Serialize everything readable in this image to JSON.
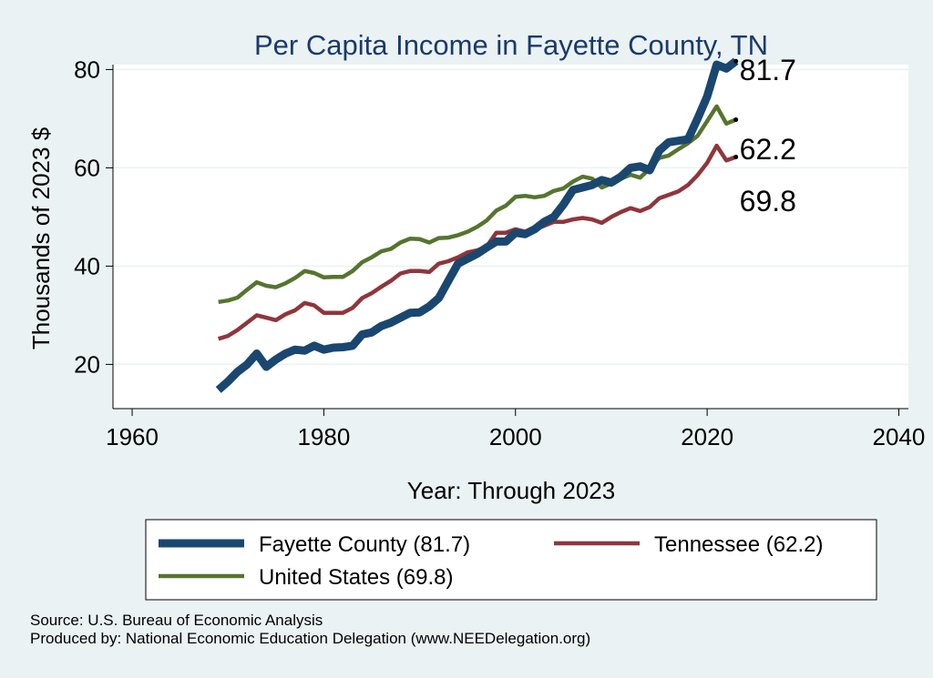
{
  "chart_data": {
    "type": "line",
    "title": "Per Capita Income in Fayette County, TN",
    "xlabel": "Year: Through 2023",
    "ylabel": "Thousands of 2023 $",
    "xlim": [
      1958,
      2041
    ],
    "ylim": [
      11,
      81
    ],
    "xticks": [
      "1960",
      "1980",
      "2000",
      "2020",
      "2040"
    ],
    "yticks": [
      "20",
      "40",
      "60",
      "80"
    ],
    "grid": true,
    "legend_position": "bottom",
    "x": [
      1969,
      1970,
      1971,
      1972,
      1973,
      1974,
      1975,
      1976,
      1977,
      1978,
      1979,
      1980,
      1981,
      1982,
      1983,
      1984,
      1985,
      1986,
      1987,
      1988,
      1989,
      1990,
      1991,
      1992,
      1993,
      1994,
      1995,
      1996,
      1997,
      1998,
      1999,
      2000,
      2001,
      2002,
      2003,
      2004,
      2005,
      2006,
      2007,
      2008,
      2009,
      2010,
      2011,
      2012,
      2013,
      2014,
      2015,
      2016,
      2017,
      2018,
      2019,
      2020,
      2021,
      2022,
      2023
    ],
    "series": [
      {
        "name": "Fayette County (81.7)",
        "color": "#1a476f",
        "end_label": "81.7",
        "values": [
          14.8,
          16.5,
          18.5,
          20.0,
          22.2,
          19.5,
          21.0,
          22.2,
          23.0,
          22.8,
          23.8,
          23.0,
          23.4,
          23.5,
          23.8,
          26.1,
          26.5,
          27.8,
          28.5,
          29.5,
          30.5,
          30.6,
          31.8,
          33.5,
          37.0,
          40.5,
          41.5,
          42.5,
          43.8,
          45.0,
          45.0,
          46.8,
          46.5,
          47.5,
          49.0,
          50.0,
          52.5,
          55.5,
          56.0,
          56.5,
          57.5,
          57.0,
          58.2,
          60.0,
          60.3,
          59.5,
          63.5,
          65.2,
          65.5,
          65.8,
          70.0,
          74.5,
          81.0,
          80.2,
          81.7
        ]
      },
      {
        "name": "Tennessee (62.2)",
        "color": "#90353b",
        "end_label": "62.2",
        "values": [
          25.2,
          25.8,
          27.0,
          28.5,
          30.0,
          29.5,
          29.0,
          30.2,
          31.0,
          32.5,
          32.0,
          30.5,
          30.5,
          30.5,
          31.5,
          33.5,
          34.5,
          35.8,
          37.0,
          38.5,
          39.0,
          39.0,
          38.8,
          40.5,
          41.0,
          41.8,
          42.8,
          43.2,
          44.0,
          46.8,
          46.8,
          47.5,
          47.0,
          47.5,
          48.2,
          49.0,
          49.0,
          49.5,
          49.8,
          49.5,
          48.8,
          50.0,
          51.0,
          51.8,
          51.2,
          52.0,
          53.8,
          54.5,
          55.2,
          56.5,
          58.5,
          61.0,
          64.5,
          61.5,
          62.2
        ]
      },
      {
        "name": "United States (69.8)",
        "color": "#55752f",
        "end_label": "69.8",
        "values": [
          32.7,
          33.0,
          33.6,
          35.2,
          36.7,
          36.0,
          35.7,
          36.5,
          37.6,
          39.0,
          38.6,
          37.7,
          37.8,
          37.8,
          39.0,
          40.8,
          41.8,
          43.0,
          43.5,
          44.8,
          45.6,
          45.5,
          44.8,
          45.7,
          45.8,
          46.3,
          47.0,
          48.0,
          49.3,
          51.3,
          52.3,
          54.1,
          54.3,
          54.0,
          54.3,
          55.3,
          55.8,
          57.2,
          58.2,
          57.8,
          56.0,
          56.8,
          57.8,
          58.6,
          58.0,
          59.8,
          62.0,
          62.5,
          63.8,
          65.0,
          66.5,
          69.5,
          72.5,
          69.0,
          69.8
        ]
      }
    ]
  },
  "source_note": "Source: U.S. Bureau of Economic Analysis",
  "produced_note": "Produced by: National Economic Education Delegation (www.NEEDelegation.org)"
}
